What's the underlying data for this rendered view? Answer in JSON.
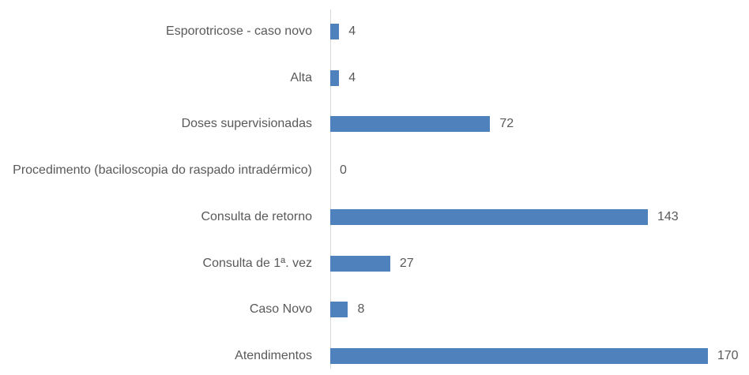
{
  "chart_data": {
    "type": "barh",
    "categories": [
      "Esporotricose  - caso novo",
      "Alta",
      "Doses supervisionadas",
      "Procedimento (baciloscopia do raspado intradérmico)",
      "Consulta de retorno",
      "Consulta de 1ª. vez",
      "Caso Novo",
      "Atendimentos"
    ],
    "values": [
      4,
      4,
      72,
      0,
      143,
      27,
      8,
      170
    ],
    "color": "#4f81bd",
    "xlim": [
      0,
      180
    ]
  }
}
